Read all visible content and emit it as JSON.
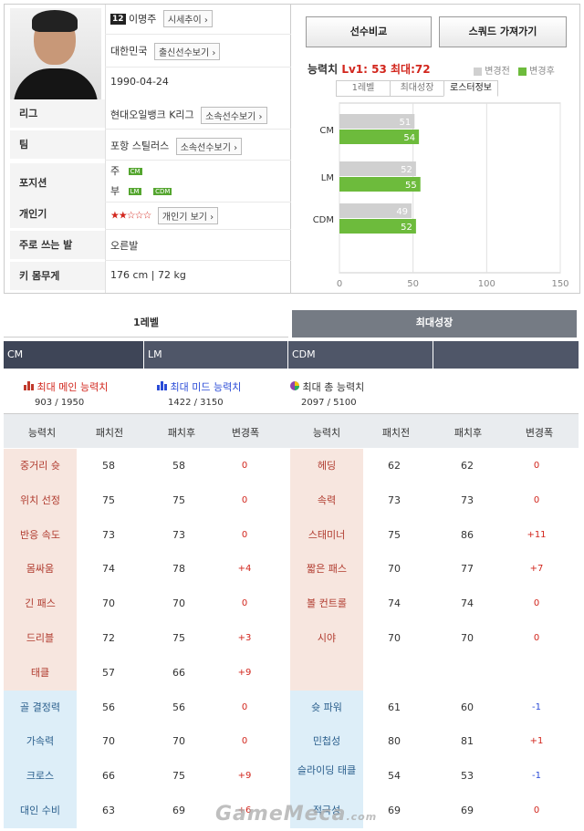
{
  "player": {
    "number": "12",
    "name": "이명주",
    "trend_btn": "시세추이",
    "nation": "대한민국",
    "nation_btn": "출신선수보기",
    "birth": "1990-04-24"
  },
  "rows": [
    {
      "label": "리그",
      "value": "현대오일뱅크 K리그",
      "btn": "소속선수보기"
    },
    {
      "label": "팀",
      "value": "포항 스틸러스",
      "btn": "소속선수보기"
    },
    {
      "label": "포지션",
      "main_prefix": "주",
      "main_tag": "CM",
      "sub_prefix": "부",
      "sub_tags": [
        "LM",
        "CDM"
      ]
    },
    {
      "label": "개인기",
      "stars": "★★☆☆☆",
      "btn": "개인기 보기"
    },
    {
      "label": "주로 쓰는 발",
      "value": "오른발"
    },
    {
      "label": "키 몸무게",
      "value": "176 cm | 72 kg"
    }
  ],
  "top": {
    "compare_btn": "선수비교",
    "squad_btn": "스쿼드 가져가기",
    "ability_label": "능력치",
    "ability_lv": "Lv1: 53",
    "ability_max": "최대:72",
    "legend_before": "변경전",
    "legend_after": "변경후",
    "tabs": [
      "1레벨",
      "최대성장",
      "로스터정보"
    ]
  },
  "colors": {
    "before": "#d0d0d0",
    "after": "#6dbb3c",
    "header": "#4f5668"
  },
  "chart_data": {
    "type": "bar",
    "orientation": "horizontal",
    "categories": [
      "CM",
      "LM",
      "CDM"
    ],
    "series": [
      {
        "name": "변경전",
        "values": [
          51,
          52,
          49
        ]
      },
      {
        "name": "변경후",
        "values": [
          54,
          55,
          52
        ]
      }
    ],
    "xlim": [
      0,
      150
    ],
    "xticks": [
      "0",
      "50",
      "100",
      "150"
    ]
  },
  "levels": {
    "tab1": "1레벨",
    "tab2": "최대성장"
  },
  "positions": [
    "CM",
    "LM",
    "CDM",
    ""
  ],
  "summary": [
    {
      "icon": "bar-chart-red-icon",
      "label": "최대 메인 능력치",
      "value": "903 / 1950"
    },
    {
      "icon": "bar-chart-blue-icon",
      "label": "최대 미드 능력치",
      "value": "1422 / 3150"
    },
    {
      "icon": "pie-chart-icon",
      "label": "최대 총 능력치",
      "value": "2097 / 5100"
    }
  ],
  "table_head": [
    "능력치",
    "패치전",
    "패치후",
    "변경폭"
  ],
  "left_rows": [
    {
      "name": "중거리 슛",
      "before": "58",
      "after": "58",
      "diff": "0",
      "type": "main"
    },
    {
      "name": "위치 선정",
      "before": "75",
      "after": "75",
      "diff": "0",
      "type": "main"
    },
    {
      "name": "반응 속도",
      "before": "73",
      "after": "73",
      "diff": "0",
      "type": "main"
    },
    {
      "name": "몸싸움",
      "before": "74",
      "after": "78",
      "diff": "+4",
      "type": "main"
    },
    {
      "name": "긴 패스",
      "before": "70",
      "after": "70",
      "diff": "0",
      "type": "main"
    },
    {
      "name": "드리블",
      "before": "72",
      "after": "75",
      "diff": "+3",
      "type": "main"
    },
    {
      "name": "태클",
      "before": "57",
      "after": "66",
      "diff": "+9",
      "type": "main"
    },
    {
      "name": "골 결정력",
      "before": "56",
      "after": "56",
      "diff": "0",
      "type": "sub"
    },
    {
      "name": "가속력",
      "before": "70",
      "after": "70",
      "diff": "0",
      "type": "sub"
    },
    {
      "name": "크로스",
      "before": "66",
      "after": "75",
      "diff": "+9",
      "type": "sub"
    },
    {
      "name": "대인 수비",
      "before": "63",
      "after": "69",
      "diff": "+6",
      "type": "sub"
    }
  ],
  "right_rows": [
    {
      "name": "헤딩",
      "before": "62",
      "after": "62",
      "diff": "0",
      "type": "main"
    },
    {
      "name": "속력",
      "before": "73",
      "after": "73",
      "diff": "0",
      "type": "main"
    },
    {
      "name": "스태미너",
      "before": "75",
      "after": "86",
      "diff": "+11",
      "type": "main"
    },
    {
      "name": "짧은 패스",
      "before": "70",
      "after": "77",
      "diff": "+7",
      "type": "main"
    },
    {
      "name": "볼 컨트롤",
      "before": "74",
      "after": "74",
      "diff": "0",
      "type": "main"
    },
    {
      "name": "시야",
      "before": "70",
      "after": "70",
      "diff": "0",
      "type": "main"
    },
    {
      "name": "",
      "before": "",
      "after": "",
      "diff": "",
      "type": "main"
    },
    {
      "name": "슛 파워",
      "before": "61",
      "after": "60",
      "diff": "-1",
      "type": "sub"
    },
    {
      "name": "민첩성",
      "before": "80",
      "after": "81",
      "diff": "+1",
      "type": "sub"
    },
    {
      "name": "슬라이딩 태클",
      "before": "54",
      "after": "53",
      "diff": "-1",
      "type": "sub"
    },
    {
      "name": "적극성",
      "before": "69",
      "after": "69",
      "diff": "0",
      "type": "sub"
    }
  ],
  "watermark": "GameMeca",
  "watermark_domain": ".com"
}
